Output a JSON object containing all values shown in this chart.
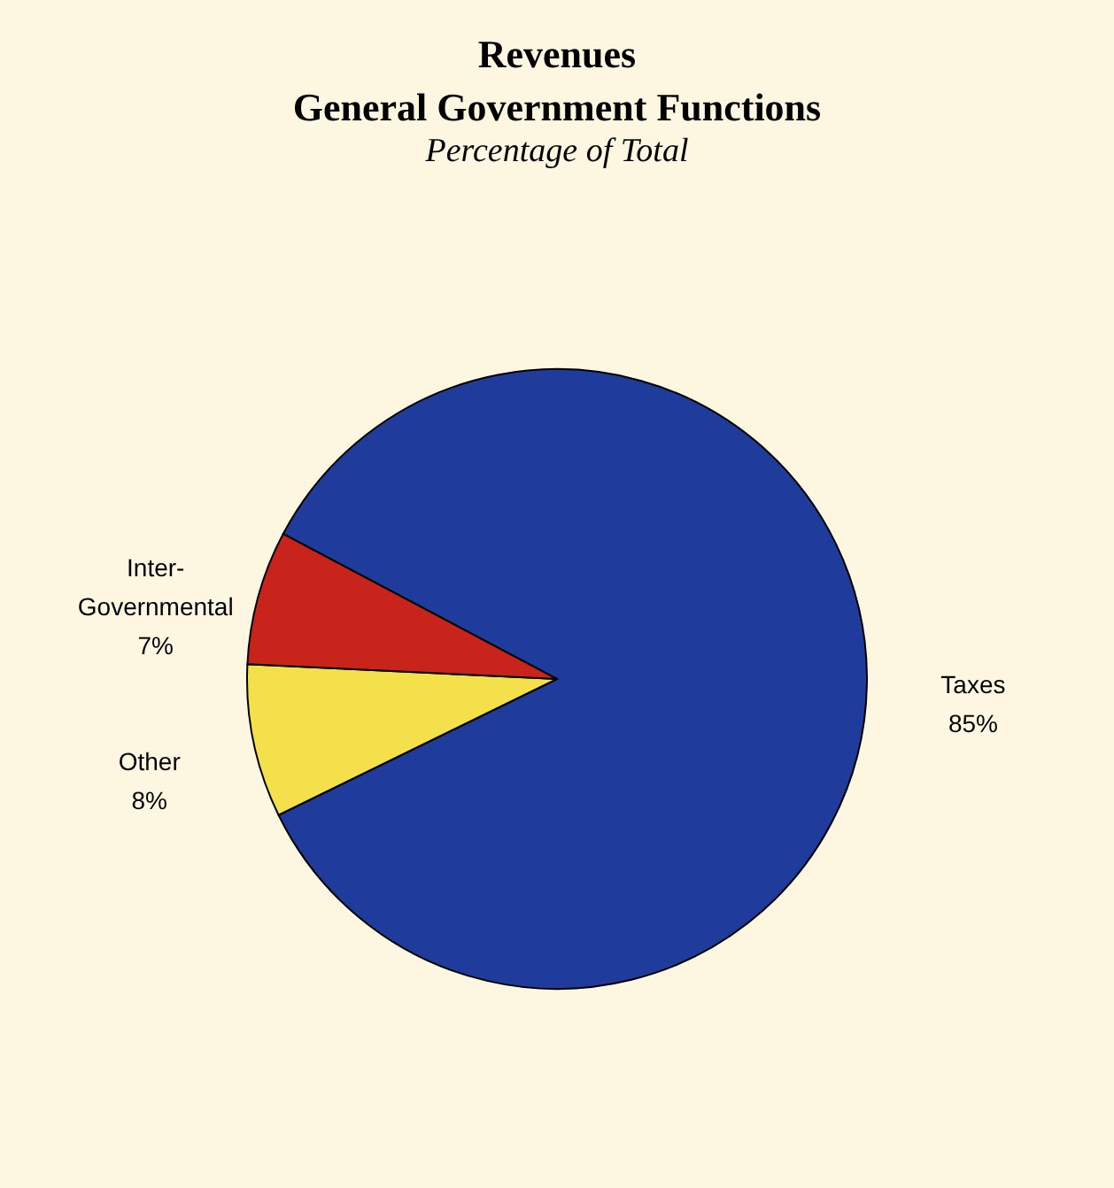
{
  "chart_data": {
    "type": "pie",
    "title": "Revenues",
    "subtitle": "General Government Functions",
    "annotations": [
      "Percentage of Total"
    ],
    "categories": [
      "Taxes",
      "Other",
      "Inter-Governmental"
    ],
    "values": [
      85,
      8,
      7
    ],
    "value_labels": [
      "85%",
      "8%",
      "7%"
    ],
    "colors": [
      "#1f3c9c",
      "#f3e04a",
      "#c9241c"
    ],
    "legend": false
  }
}
